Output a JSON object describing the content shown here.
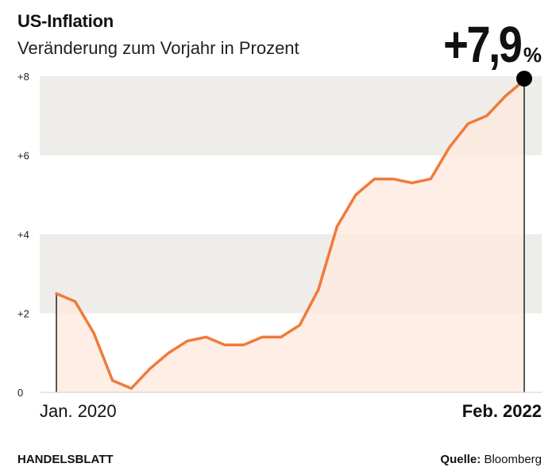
{
  "chart_data": {
    "type": "area",
    "title": "US-Inflation",
    "subtitle": "Veränderung zum Vorjahr in Prozent",
    "x": [
      "2020-01",
      "2020-02",
      "2020-03",
      "2020-04",
      "2020-05",
      "2020-06",
      "2020-07",
      "2020-08",
      "2020-09",
      "2020-10",
      "2020-11",
      "2020-12",
      "2021-01",
      "2021-02",
      "2021-03",
      "2021-04",
      "2021-05",
      "2021-06",
      "2021-07",
      "2021-08",
      "2021-09",
      "2021-10",
      "2021-11",
      "2021-12",
      "2022-01",
      "2022-02"
    ],
    "values": [
      2.5,
      2.3,
      1.5,
      0.3,
      0.1,
      0.6,
      1.0,
      1.3,
      1.4,
      1.2,
      1.2,
      1.4,
      1.4,
      1.7,
      2.6,
      4.2,
      5.0,
      5.4,
      5.4,
      5.3,
      5.4,
      6.2,
      6.8,
      7.0,
      7.5,
      7.9
    ],
    "ylim": [
      0,
      8
    ],
    "yticks": [
      {
        "value": 0,
        "label": "0"
      },
      {
        "value": 2,
        "label": "+2"
      },
      {
        "value": 4,
        "label": "+4"
      },
      {
        "value": 6,
        "label": "+6"
      },
      {
        "value": 8,
        "label": "+8"
      }
    ],
    "x_start_label": "Jan. 2020",
    "x_end_label": "Feb. 2022",
    "callout_value": "+7,9",
    "callout_unit": "%",
    "colors": {
      "line": "#f07a3c",
      "fill": "#fde8dc",
      "band": "#efede9",
      "marker": "#000000",
      "axis": "#222222"
    }
  },
  "footer": {
    "brand": "HANDELSBLATT",
    "source_label": "Quelle:",
    "source_value": "Bloomberg"
  }
}
